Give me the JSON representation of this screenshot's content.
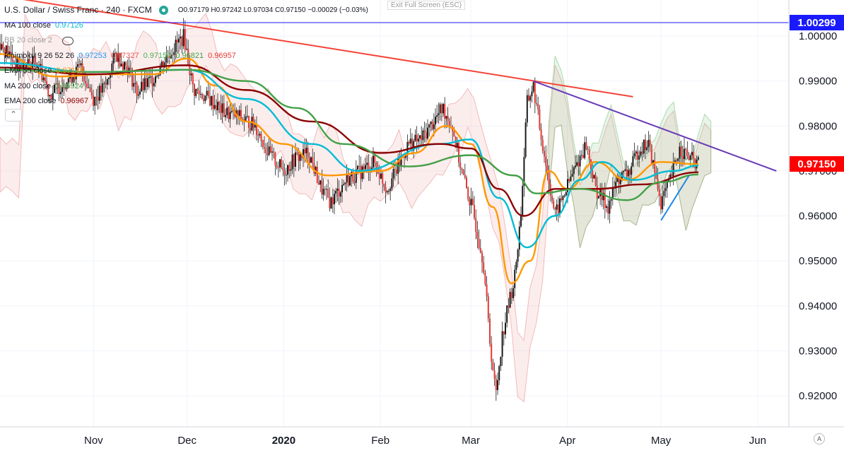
{
  "header": {
    "symbol_title": "U.S. Dollar / Swiss Franc · 240 · FXCM",
    "ohlc": "O0.97179 H0.97242 L0.97034 C0.97150 −0.00029 (−0.03%)",
    "exit_fullscreen": "Exit Full Screen (ESC)"
  },
  "indicators": [
    {
      "label": "MA 100 close",
      "value": "0.97126",
      "color": "#00bcd4"
    },
    {
      "label": "BB 20 close 2",
      "value": "",
      "color": "#9e9e9e"
    },
    {
      "label": "Ichimoku 9 26 52 26",
      "values": [
        "0.97253",
        "0.97327",
        "0.97150",
        "0.96821",
        "0.96957"
      ],
      "colors": [
        "#2196f3",
        "#ef5350",
        "#4caf50",
        "#43a047",
        "#e53935"
      ]
    },
    {
      "label": "EMA 55 close",
      "value": "0.97149",
      "color": "#ff9800"
    },
    {
      "label": "MA 200 close",
      "value": "0.96924",
      "color": "#43a047"
    },
    {
      "label": "EMA 200 close",
      "value": "0.96967",
      "color": "#8b0000"
    }
  ],
  "price_badges": {
    "top": {
      "text": "1.00299",
      "color": "#1a1aff",
      "value": 1.00299
    },
    "current": {
      "text": "0.97150",
      "color": "#ff0000",
      "value": 0.9715
    }
  },
  "auto_label": "A",
  "chart_data": {
    "type": "line",
    "title": "U.S. Dollar / Swiss Franc · 240 · FXCM",
    "ylim": [
      0.917,
      1.007
    ],
    "y_ticks": [
      "1.00000",
      "0.99000",
      "0.98000",
      "0.97000",
      "0.96000",
      "0.95000",
      "0.94000",
      "0.93000",
      "0.92000"
    ],
    "x_ticks": [
      "Nov",
      "Dec",
      "2020",
      "Feb",
      "Mar",
      "Apr",
      "May",
      "Jun"
    ],
    "x_tick_dates": [
      "2019-11-01",
      "2019-12-01",
      "2020-01-01",
      "2020-02-01",
      "2020-03-01",
      "2020-04-01",
      "2020-05-01",
      "2020-06-01"
    ],
    "xlim": [
      "2019-10-02",
      "2020-06-11"
    ],
    "price_path": [
      [
        "2019-10-02",
        0.9985
      ],
      [
        "2019-10-08",
        0.993
      ],
      [
        "2019-10-14",
        0.9945
      ],
      [
        "2019-10-18",
        0.987
      ],
      [
        "2019-10-23",
        0.99
      ],
      [
        "2019-10-28",
        0.993
      ],
      [
        "2019-11-01",
        0.986
      ],
      [
        "2019-11-05",
        0.989
      ],
      [
        "2019-11-08",
        0.996
      ],
      [
        "2019-11-12",
        0.993
      ],
      [
        "2019-11-15",
        0.9875
      ],
      [
        "2019-11-20",
        0.9905
      ],
      [
        "2019-11-25",
        0.996
      ],
      [
        "2019-11-30",
        1.0
      ],
      [
        "2019-12-03",
        0.988
      ],
      [
        "2019-12-08",
        0.986
      ],
      [
        "2019-12-13",
        0.983
      ],
      [
        "2019-12-18",
        0.982
      ],
      [
        "2019-12-23",
        0.98
      ],
      [
        "2019-12-27",
        0.974
      ],
      [
        "2020-01-01",
        0.97
      ],
      [
        "2020-01-05",
        0.973
      ],
      [
        "2020-01-09",
        0.974
      ],
      [
        "2020-01-13",
        0.966
      ],
      [
        "2020-01-16",
        0.963
      ],
      [
        "2020-01-21",
        0.968
      ],
      [
        "2020-01-26",
        0.97
      ],
      [
        "2020-01-30",
        0.972
      ],
      [
        "2020-02-03",
        0.966
      ],
      [
        "2020-02-06",
        0.97
      ],
      [
        "2020-02-10",
        0.976
      ],
      [
        "2020-02-14",
        0.977
      ],
      [
        "2020-02-18",
        0.981
      ],
      [
        "2020-02-21",
        0.984
      ],
      [
        "2020-02-24",
        0.98
      ],
      [
        "2020-02-27",
        0.97
      ],
      [
        "2020-03-02",
        0.96
      ],
      [
        "2020-03-05",
        0.95
      ],
      [
        "2020-03-07",
        0.933
      ],
      [
        "2020-03-09",
        0.92
      ],
      [
        "2020-03-11",
        0.933
      ],
      [
        "2020-03-13",
        0.94
      ],
      [
        "2020-03-15",
        0.946
      ],
      [
        "2020-03-17",
        0.96
      ],
      [
        "2020-03-19",
        0.985
      ],
      [
        "2020-03-21",
        0.989
      ],
      [
        "2020-03-23",
        0.98
      ],
      [
        "2020-03-25",
        0.972
      ],
      [
        "2020-03-28",
        0.96
      ],
      [
        "2020-03-31",
        0.965
      ],
      [
        "2020-04-03",
        0.97
      ],
      [
        "2020-04-07",
        0.976
      ],
      [
        "2020-04-10",
        0.966
      ],
      [
        "2020-04-14",
        0.962
      ],
      [
        "2020-04-17",
        0.968
      ],
      [
        "2020-04-21",
        0.97
      ],
      [
        "2020-04-24",
        0.975
      ],
      [
        "2020-04-27",
        0.976
      ],
      [
        "2020-05-01",
        0.963
      ],
      [
        "2020-05-04",
        0.968
      ],
      [
        "2020-05-07",
        0.975
      ],
      [
        "2020-05-10",
        0.973
      ],
      [
        "2020-05-13",
        0.9715
      ]
    ],
    "series": [
      {
        "label": "EMA 55 close",
        "color": "#ff9800",
        "values": [
          [
            "2019-10-02",
            0.996
          ],
          [
            "2019-10-20",
            0.991
          ],
          [
            "2019-11-05",
            0.9915
          ],
          [
            "2019-11-20",
            0.9915
          ],
          [
            "2019-12-01",
            0.995
          ],
          [
            "2019-12-10",
            0.989
          ],
          [
            "2019-12-20",
            0.981
          ],
          [
            "2020-01-01",
            0.976
          ],
          [
            "2020-01-15",
            0.969
          ],
          [
            "2020-02-01",
            0.97
          ],
          [
            "2020-02-12",
            0.974
          ],
          [
            "2020-02-22",
            0.98
          ],
          [
            "2020-03-01",
            0.976
          ],
          [
            "2020-03-08",
            0.962
          ],
          [
            "2020-03-14",
            0.945
          ],
          [
            "2020-03-20",
            0.95
          ],
          [
            "2020-03-26",
            0.97
          ],
          [
            "2020-04-01",
            0.966
          ],
          [
            "2020-04-10",
            0.972
          ],
          [
            "2020-04-20",
            0.968
          ],
          [
            "2020-05-01",
            0.972
          ],
          [
            "2020-05-13",
            0.9715
          ]
        ]
      },
      {
        "label": "MA 100 close",
        "color": "#00bcd4",
        "values": [
          [
            "2019-10-02",
            0.994
          ],
          [
            "2019-11-01",
            0.992
          ],
          [
            "2019-12-01",
            0.9925
          ],
          [
            "2019-12-20",
            0.986
          ],
          [
            "2020-01-10",
            0.976
          ],
          [
            "2020-01-25",
            0.97
          ],
          [
            "2020-02-20",
            0.976
          ],
          [
            "2020-03-01",
            0.977
          ],
          [
            "2020-03-10",
            0.964
          ],
          [
            "2020-03-19",
            0.953
          ],
          [
            "2020-03-28",
            0.96
          ],
          [
            "2020-04-05",
            0.968
          ],
          [
            "2020-04-12",
            0.972
          ],
          [
            "2020-04-22",
            0.968
          ],
          [
            "2020-05-05",
            0.97
          ],
          [
            "2020-05-13",
            0.9712
          ]
        ]
      },
      {
        "label": "EMA 200 close",
        "color": "#8b0000",
        "values": [
          [
            "2019-10-02",
            0.993
          ],
          [
            "2019-11-01",
            0.9915
          ],
          [
            "2019-12-01",
            0.9935
          ],
          [
            "2019-12-20",
            0.988
          ],
          [
            "2020-01-10",
            0.981
          ],
          [
            "2020-02-01",
            0.974
          ],
          [
            "2020-02-20",
            0.976
          ],
          [
            "2020-03-01",
            0.975
          ],
          [
            "2020-03-10",
            0.966
          ],
          [
            "2020-03-18",
            0.96
          ],
          [
            "2020-03-28",
            0.966
          ],
          [
            "2020-04-10",
            0.966
          ],
          [
            "2020-04-25",
            0.967
          ],
          [
            "2020-05-13",
            0.9697
          ]
        ]
      },
      {
        "label": "MA 200 close",
        "color": "#43a047",
        "values": [
          [
            "2019-10-02",
            0.9925
          ],
          [
            "2019-11-01",
            0.992
          ],
          [
            "2019-12-01",
            0.9925
          ],
          [
            "2019-12-20",
            0.99
          ],
          [
            "2020-01-05",
            0.984
          ],
          [
            "2020-01-20",
            0.976
          ],
          [
            "2020-02-10",
            0.971
          ],
          [
            "2020-03-01",
            0.9735
          ],
          [
            "2020-03-15",
            0.969
          ],
          [
            "2020-03-22",
            0.965
          ],
          [
            "2020-04-05",
            0.966
          ],
          [
            "2020-04-20",
            0.9635
          ],
          [
            "2020-05-01",
            0.9675
          ],
          [
            "2020-05-13",
            0.9692
          ]
        ]
      }
    ],
    "trendlines": [
      {
        "name": "descending resistance",
        "color": "#f44336",
        "from": [
          "2019-10-02",
          1.009
        ],
        "to": [
          "2020-04-22",
          0.9865
        ]
      },
      {
        "name": "triangle upper line",
        "color": "#673ab7",
        "from": [
          "2020-03-21",
          0.99
        ],
        "to": [
          "2020-06-07",
          0.97
        ]
      },
      {
        "name": "rising support",
        "color": "#1e88e5",
        "from": [
          "2020-05-01",
          0.959
        ],
        "to": [
          "2020-05-10",
          0.969
        ]
      },
      {
        "name": "horizontal level",
        "color": "#1a1aff",
        "from": [
          "2019-10-02",
          1.00299
        ],
        "to": [
          "2020-06-11",
          1.00299
        ]
      }
    ]
  }
}
